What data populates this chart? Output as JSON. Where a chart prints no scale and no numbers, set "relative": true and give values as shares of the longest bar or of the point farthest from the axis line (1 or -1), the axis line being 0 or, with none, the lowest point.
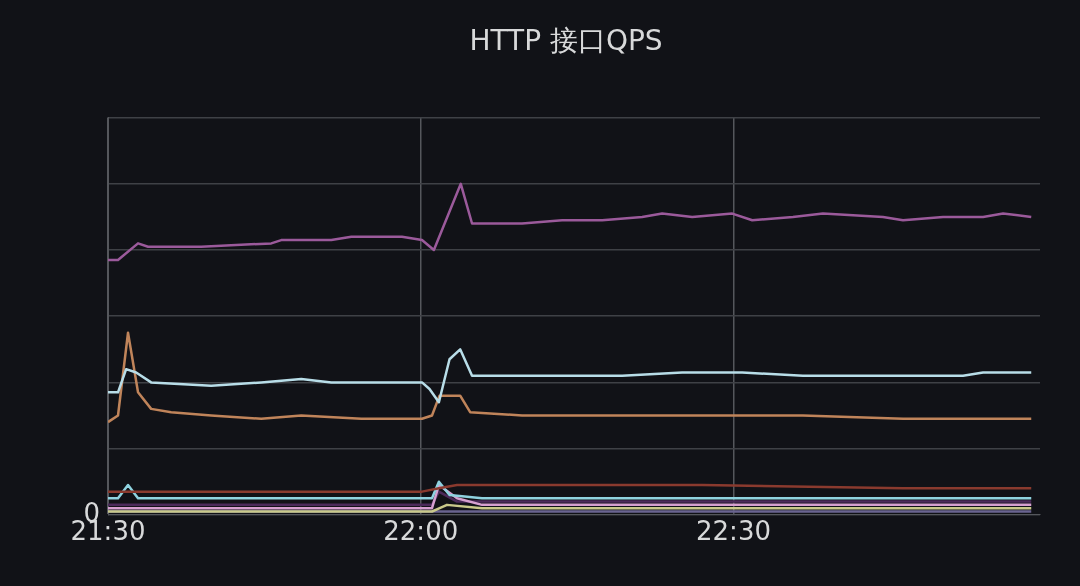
{
  "chart_data": {
    "type": "line",
    "title": "HTTP 接口QPS",
    "relative": true,
    "xlim": [
      21.5,
      22.99
    ],
    "xticks": [
      {
        "value": 21.5,
        "label": "21:30"
      },
      {
        "value": 22,
        "label": "22:00"
      },
      {
        "value": 22.5,
        "label": "22:30"
      }
    ],
    "annotations": [
      "0"
    ],
    "grid": true,
    "legend": false,
    "marker": "none",
    "line_style": "solid",
    "series": [
      {
        "color": "#9b5a9b",
        "x": [
          21.5,
          21.516,
          21.548,
          21.564,
          21.649,
          21.761,
          21.777,
          21.857,
          21.889,
          21.938,
          21.97,
          22.002,
          22.021,
          22.064,
          22.082,
          22.098,
          22.162,
          22.226,
          22.29,
          22.354,
          22.386,
          22.434,
          22.498,
          22.53,
          22.595,
          22.643,
          22.739,
          22.771,
          22.835,
          22.899,
          22.931,
          22.976
        ],
        "values": [
          0.77,
          0.77,
          0.82,
          0.81,
          0.81,
          0.82,
          0.83,
          0.83,
          0.84,
          0.84,
          0.84,
          0.83,
          0.8,
          1.0,
          0.88,
          0.88,
          0.88,
          0.89,
          0.89,
          0.9,
          0.91,
          0.9,
          0.91,
          0.89,
          0.9,
          0.91,
          0.9,
          0.89,
          0.9,
          0.9,
          0.91,
          0.9
        ]
      },
      {
        "color": "#b8dde8",
        "x": [
          21.5,
          21.516,
          21.529,
          21.545,
          21.569,
          21.665,
          21.745,
          21.809,
          21.857,
          22.002,
          22.014,
          22.029,
          22.046,
          22.063,
          22.082,
          22.162,
          22.226,
          22.322,
          22.418,
          22.514,
          22.611,
          22.707,
          22.867,
          22.899,
          22.976
        ],
        "values": [
          0.37,
          0.37,
          0.44,
          0.43,
          0.4,
          0.39,
          0.4,
          0.41,
          0.4,
          0.4,
          0.38,
          0.34,
          0.47,
          0.5,
          0.42,
          0.42,
          0.42,
          0.42,
          0.43,
          0.43,
          0.42,
          0.42,
          0.42,
          0.43,
          0.43
        ]
      },
      {
        "color": "#c0845a",
        "x": [
          21.5,
          21.516,
          21.532,
          21.548,
          21.569,
          21.601,
          21.665,
          21.745,
          21.809,
          21.905,
          22.002,
          22.018,
          22.03,
          22.042,
          22.063,
          22.079,
          22.162,
          22.29,
          22.45,
          22.611,
          22.771,
          22.976
        ],
        "values": [
          0.28,
          0.3,
          0.55,
          0.37,
          0.32,
          0.31,
          0.3,
          0.29,
          0.3,
          0.29,
          0.29,
          0.3,
          0.36,
          0.36,
          0.36,
          0.31,
          0.3,
          0.3,
          0.3,
          0.3,
          0.29,
          0.29
        ]
      },
      {
        "color": "#8a3a2e",
        "x": [
          21.5,
          21.809,
          22.002,
          22.029,
          22.058,
          22.162,
          22.45,
          22.771,
          22.976
        ],
        "values": [
          0.07,
          0.07,
          0.07,
          0.08,
          0.09,
          0.09,
          0.09,
          0.08,
          0.08
        ]
      },
      {
        "color": "#8fd3e0",
        "x": [
          21.5,
          21.516,
          21.532,
          21.548,
          21.649,
          22.018,
          22.029,
          22.046,
          22.098,
          22.5,
          22.976
        ],
        "values": [
          0.05,
          0.05,
          0.09,
          0.05,
          0.05,
          0.05,
          0.1,
          0.06,
          0.05,
          0.05,
          0.05
        ]
      },
      {
        "color": "#d6a0d0",
        "x": [
          21.5,
          22.018,
          22.029,
          22.058,
          22.098,
          22.976
        ],
        "values": [
          0.02,
          0.02,
          0.09,
          0.05,
          0.03,
          0.03
        ]
      },
      {
        "color": "#4b2a5a",
        "x": [
          21.5,
          22.018,
          22.029,
          22.058,
          22.098,
          22.976
        ],
        "values": [
          0.03,
          0.03,
          0.07,
          0.04,
          0.04,
          0.04
        ]
      },
      {
        "color": "#c9c98a",
        "x": [
          21.5,
          22.018,
          22.042,
          22.098,
          22.976
        ],
        "values": [
          0.01,
          0.01,
          0.03,
          0.02,
          0.02
        ]
      },
      {
        "color": "#6a6490",
        "x": [
          21.5,
          22.976
        ],
        "values": [
          0.01,
          0.01
        ]
      }
    ]
  }
}
